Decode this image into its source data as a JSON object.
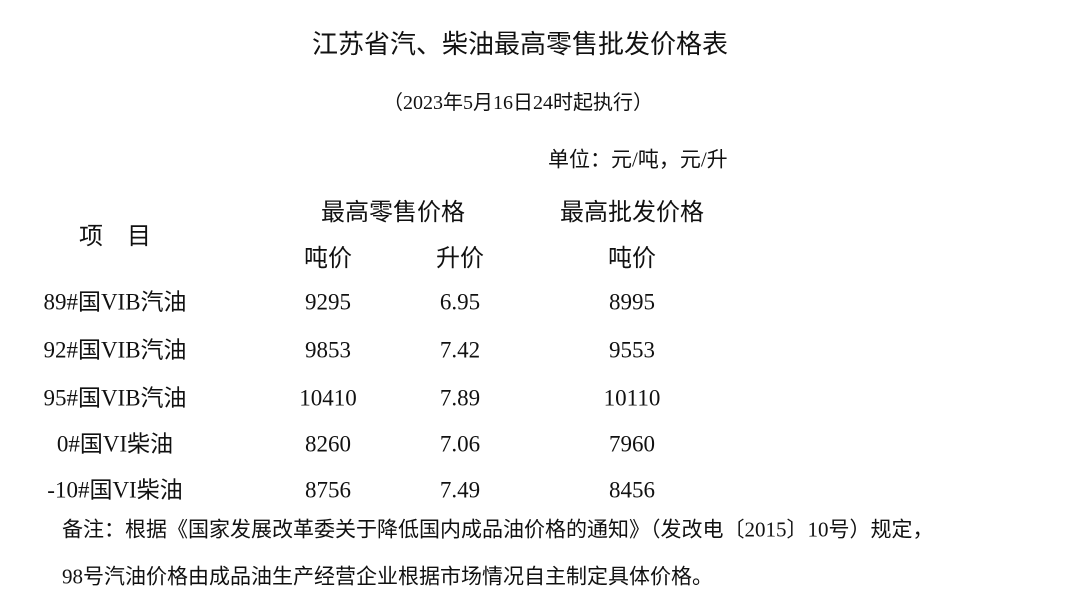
{
  "title": "江苏省汽、柴油最高零售批发价格表",
  "subtitle": "（2023年5月16日24时起执行）",
  "unit": "单位：元/吨，元/升",
  "table": {
    "header": {
      "item": "项　目",
      "retail": "最高零售价格",
      "wholesale": "最高批发价格",
      "retail_ton": "吨价",
      "retail_liter": "升价",
      "wholesale_ton": "吨价"
    },
    "rows": [
      [
        "89#国VIB汽油",
        "9295",
        "6.95",
        "8995"
      ],
      [
        "92#国VIB汽油",
        "9853",
        "7.42",
        "9553"
      ],
      [
        "95#国VIB汽油",
        "10410",
        "7.89",
        "10110"
      ],
      [
        "0#国VI柴油",
        "8260",
        "7.06",
        "7960"
      ],
      [
        "-10#国VI柴油",
        "8756",
        "7.49",
        "8456"
      ]
    ]
  },
  "note": [
    "备注：根据《国家发展改革委关于降低国内成品油价格的通知》（发改电〔2015〕10号）规定，",
    "98号汽油价格由成品油生产经营企业根据市场情况自主制定具体价格。"
  ]
}
